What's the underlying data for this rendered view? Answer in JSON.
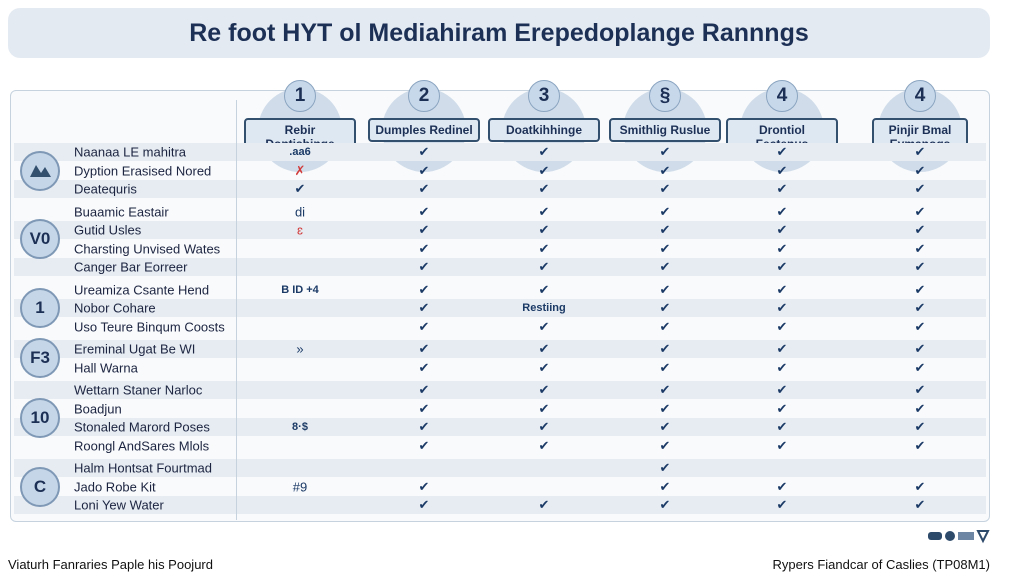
{
  "title": "Re foot HYT ol Mediahiram Erepedoplange Rannngs",
  "table": {
    "columns": [
      {
        "number": "1",
        "label": "Rebir Dontisbinge"
      },
      {
        "number": "2",
        "label": "Dumples Redinel"
      },
      {
        "number": "3",
        "label": "Doatkihhinge"
      },
      {
        "number": "§",
        "label": "Smithlig Ruslue"
      },
      {
        "number": "4",
        "label": "Drontiol Fectenus"
      },
      {
        "number": "4",
        "label": "Pinjir Bmal Eymanogs"
      }
    ],
    "groups": [
      {
        "badge": null,
        "rows": [
          {
            "label": "Naanaa LE mahitra",
            "cells": [
              ".aa6",
              "✔",
              "✔",
              "✔",
              "✔",
              "✔"
            ]
          },
          {
            "label": "Dyption Erasised Nored",
            "cells": [
              "✗",
              "✔",
              "✔",
              "✔",
              "✔",
              "✔"
            ]
          },
          {
            "label": "Deatequris",
            "cells": [
              "✔",
              "✔",
              "✔",
              "✔",
              "✔",
              "✔"
            ]
          }
        ]
      },
      {
        "badge": "V0",
        "rows": [
          {
            "label": "Buaamic Eastair",
            "cells": [
              "di",
              "✔",
              "✔",
              "✔",
              "✔",
              "✔"
            ]
          },
          {
            "label": "Gutid Usles",
            "cells": [
              "ɛ",
              "✔",
              "✔",
              "✔",
              "✔",
              "✔"
            ]
          },
          {
            "label": "Charsting Unvised Wates",
            "cells": [
              null,
              "✔",
              "✔",
              "✔",
              "✔",
              "✔"
            ]
          },
          {
            "label": "Canger Bar Eorreer",
            "cells": [
              null,
              "✔",
              "✔",
              "✔",
              "✔",
              "✔"
            ]
          }
        ]
      },
      {
        "badge": "1",
        "rows": [
          {
            "label": "Ureamiza Csante Hend",
            "cells": [
              "B  ID  +4",
              "✔",
              "✔",
              "✔",
              "✔",
              "✔"
            ]
          },
          {
            "label": "Nobor Cohare",
            "cells": [
              null,
              "✔",
              "Restiing",
              "✔",
              "✔",
              "✔"
            ]
          },
          {
            "label": "Uso Teure Binqum Coosts",
            "cells": [
              null,
              "✔",
              "✔",
              "✔",
              "✔",
              "✔"
            ]
          }
        ]
      },
      {
        "badge": "F3",
        "rows": [
          {
            "label": "Ereminal Ugat Be WI",
            "cells": [
              "»",
              "✔",
              "✔",
              "✔",
              "✔",
              "✔"
            ]
          },
          {
            "label": "Hall Warna",
            "cells": [
              null,
              "✔",
              "✔",
              "✔",
              "✔",
              "✔"
            ]
          }
        ]
      },
      {
        "badge": "10",
        "rows": [
          {
            "label": "Wettarn Staner Narloc",
            "cells": [
              null,
              "✔",
              "✔",
              "✔",
              "✔",
              "✔"
            ]
          },
          {
            "label": "Boadjun",
            "cells": [
              null,
              "✔",
              "✔",
              "✔",
              "✔",
              "✔"
            ]
          },
          {
            "label": "Stonaled Marord Poses",
            "cells": [
              "8·$",
              "✔",
              "✔",
              "✔",
              "✔",
              "✔"
            ]
          },
          {
            "label": "Roongl AndSares Mlols",
            "cells": [
              null,
              "✔",
              "✔",
              "✔",
              "✔",
              "✔"
            ]
          }
        ]
      },
      {
        "badge": "C",
        "rows": [
          {
            "label": "Halm Hontsat Fourtmad",
            "cells": [
              null,
              null,
              null,
              "✔",
              null,
              null
            ]
          },
          {
            "label": "Jado Robe Kit",
            "cells": [
              "#9",
              "✔",
              null,
              "✔",
              "✔",
              "✔"
            ]
          },
          {
            "label": "Loni Yew Water",
            "cells": [
              null,
              "✔",
              "✔",
              "✔",
              "✔",
              "✔"
            ]
          }
        ]
      }
    ]
  },
  "footer": {
    "left": "Viaturh Fanraries Paple his Poojurd",
    "right": "Rypers Fiandcar of Caslies (TP08M1)"
  }
}
